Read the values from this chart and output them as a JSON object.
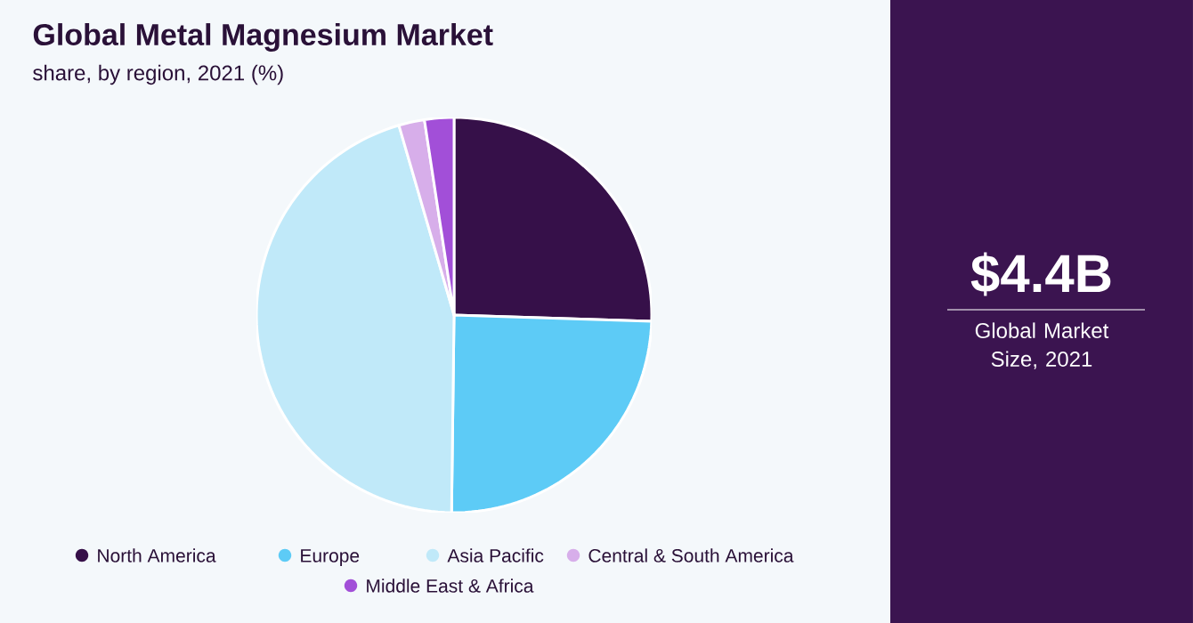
{
  "chart_data": {
    "type": "pie",
    "title": "Global Metal Magnesium Market",
    "subtitle": "share, by region, 2021 (%)",
    "categories": [
      "North America",
      "Europe",
      "Asia Pacific",
      "Central & South America",
      "Middle East & Africa"
    ],
    "values": [
      25.5,
      24.7,
      45.3,
      2.1,
      2.4
    ],
    "colors": [
      "#361049",
      "#5dcbf6",
      "#c0e9f9",
      "#d7aeea",
      "#a24fd8"
    ],
    "legend": "bottom",
    "annotations": [
      "$4.4B",
      "Global Market Size, 2021"
    ]
  }
}
